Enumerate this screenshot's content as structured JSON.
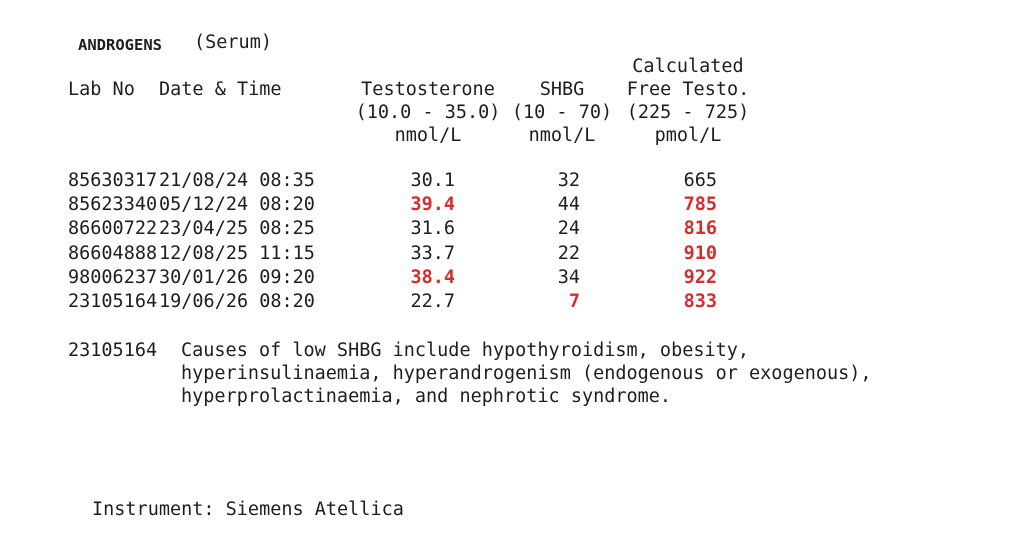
{
  "header": {
    "title": "ANDROGENS",
    "specimen": "(Serum)"
  },
  "table": {
    "columns": [
      {
        "label": "Lab No"
      },
      {
        "label": "Date & Time"
      },
      {
        "label": "Testosterone",
        "range": "(10.0 - 35.0)",
        "unit": "nmol/L"
      },
      {
        "label": "SHBG",
        "range": "(10 - 70)",
        "unit": "nmol/L"
      },
      {
        "label_line1": "Calculated",
        "label": "Free Testo.",
        "range": "(225 - 725)",
        "unit": "pmol/L"
      }
    ],
    "rows": [
      [
        "85630317",
        "21/08/24 08:35",
        {
          "text": "30.1"
        },
        {
          "text": "32"
        },
        {
          "text": "665"
        }
      ],
      [
        "85623340",
        "05/12/24 08:20",
        {
          "text": "39.4",
          "color": "#d32f2f"
        },
        {
          "text": "44"
        },
        {
          "text": "785",
          "color": "#d32f2f"
        }
      ],
      [
        "86600722",
        "23/04/25 08:25",
        {
          "text": "31.6"
        },
        {
          "text": "24"
        },
        {
          "text": "816",
          "color": "#d32f2f"
        }
      ],
      [
        "86604888",
        "12/08/25 11:15",
        {
          "text": "33.7"
        },
        {
          "text": "22"
        },
        {
          "text": "910",
          "color": "#d32f2f"
        }
      ],
      [
        "98006237",
        "30/01/26 09:20",
        {
          "text": "38.4",
          "color": "#d32f2f"
        },
        {
          "text": "34"
        },
        {
          "text": "922",
          "color": "#d32f2f"
        }
      ],
      [
        "23105164",
        "19/06/26 08:20",
        {
          "text": "22.7"
        },
        {
          "text": "7",
          "color": "#d32f2f"
        },
        {
          "text": "833",
          "color": "#d32f2f"
        }
      ]
    ]
  },
  "note": {
    "lab_no": "23105164",
    "lines": [
      "Causes of low SHBG include hypothyroidism, obesity,",
      "hyperinsulinaemia, hyperandrogenism (endogenous or exogenous),",
      "hyperprolactinaemia, and nephrotic syndrome."
    ]
  },
  "footer": {
    "instrument": "Instrument: Siemens Atellica"
  }
}
